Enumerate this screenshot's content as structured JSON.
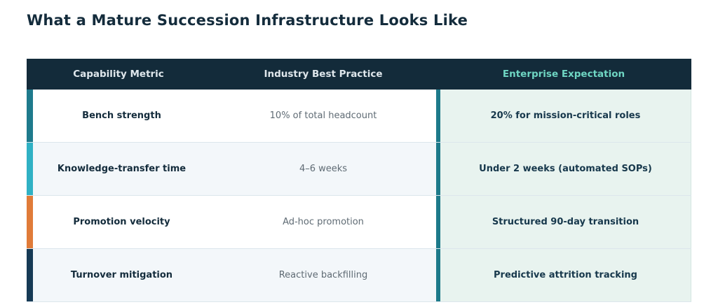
{
  "header": {
    "title": "What a Mature Succession Infrastructure Looks Like"
  },
  "table": {
    "columns": [
      "Capability Metric",
      "Industry Best Practice",
      "Enterprise Expectation"
    ],
    "rows": [
      [
        "Bench strength",
        "10% of total headcount",
        "20% for mission-critical roles"
      ],
      [
        "Knowledge-transfer time",
        "4–6 weeks",
        "Under 2 weeks (automated SOPs)"
      ],
      [
        "Promotion velocity",
        "Ad-hoc promotion",
        "Structured 90-day transition"
      ],
      [
        "Turnover mitigation",
        "Reactive backfilling",
        "Predictive attrition tracking"
      ]
    ]
  }
}
